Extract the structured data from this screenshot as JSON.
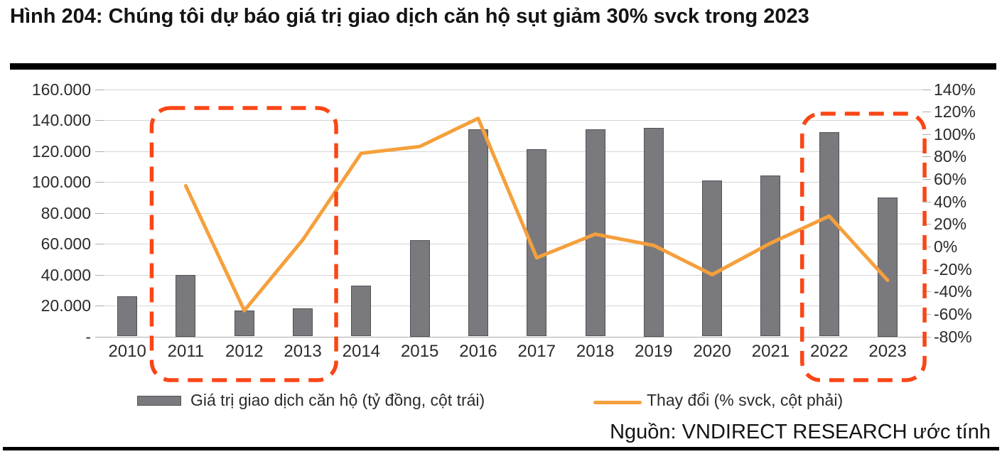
{
  "figure": {
    "title": "Hình 204: Chúng tôi dự báo giá trị giao dịch căn hộ sụt giảm 30% svck trong 2023",
    "source": "Nguồn: VNDIRECT RESEARCH ước tính"
  },
  "colors": {
    "bar_fill": "#7a7a7e",
    "bar_border": "#515155",
    "line": "#F5A03C",
    "highlight_box": "#FA4616",
    "gridline": "#d6d6d6",
    "axis_line": "#adadad",
    "axis_text": "#2b2b2b",
    "title_text": "#141414",
    "rule": "#000000"
  },
  "chart_data": {
    "type": "bar+line combo",
    "categories": [
      "2010",
      "2011",
      "2012",
      "2013",
      "2014",
      "2015",
      "2016",
      "2017",
      "2018",
      "2019",
      "2020",
      "2021",
      "2022",
      "2023"
    ],
    "series": [
      {
        "name": "Giá trị giao dịch căn hộ (tỷ đồng, cột trái)",
        "type": "bar",
        "axis": "left",
        "values": [
          26000,
          40000,
          17000,
          18000,
          33000,
          62500,
          134000,
          121000,
          134000,
          135000,
          101000,
          104000,
          132000,
          90000
        ]
      },
      {
        "name": "Thay đổi (% svck, cột phải)",
        "type": "line",
        "axis": "right",
        "values": [
          null,
          54,
          -57,
          6,
          83,
          89,
          114,
          -10,
          11,
          1,
          -25,
          3,
          27,
          -30
        ]
      }
    ],
    "left_axis": {
      "tick_labels": [
        "160.000",
        "140.000",
        "120.000",
        "100.000",
        "80.000",
        "60.000",
        "40.000",
        "20.000",
        "-"
      ],
      "min": 0,
      "max": 160000
    },
    "right_axis": {
      "tick_labels": [
        "140%",
        "120%",
        "100%",
        "80%",
        "60%",
        "40%",
        "20%",
        "0%",
        "-20%",
        "-40%",
        "-60%",
        "-80%"
      ],
      "min": -80,
      "max": 140
    },
    "grid": "horizontal only",
    "legend_position": "bottom",
    "highlighted_year_ranges": [
      [
        "2011",
        "2013"
      ],
      [
        "2022",
        "2023"
      ]
    ]
  }
}
